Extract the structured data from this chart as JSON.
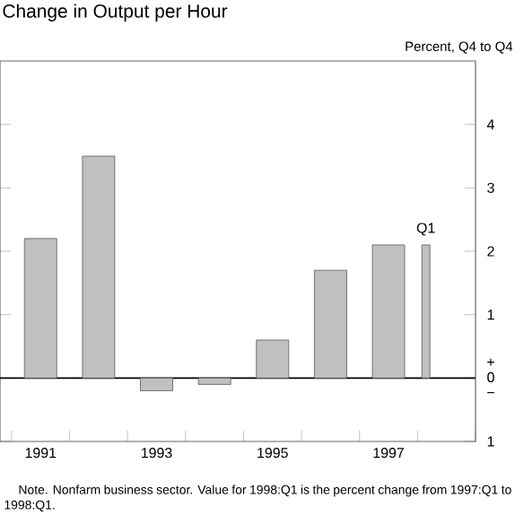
{
  "chart_data": {
    "type": "bar",
    "title": "Change in Output per Hour",
    "ylabel": "Percent, Q4 to Q4",
    "categories": [
      "1991",
      null,
      "1993",
      null,
      "1995",
      null,
      "1997",
      null
    ],
    "values": [
      2.2,
      3.5,
      -0.2,
      -0.1,
      0.6,
      1.7,
      2.1,
      2.1
    ],
    "color": "#c0c0c0",
    "ylim": [
      -1,
      5
    ],
    "yticks": [
      {
        "value": -1,
        "label": "1"
      },
      {
        "value": 0,
        "label": "+ 0 −"
      },
      1,
      2,
      3,
      4
    ],
    "ref_lines": [
      {
        "axis": "y",
        "value": 0
      }
    ],
    "annotations": [
      {
        "text": "Q1",
        "y": 2.1
      },
      "Note. Nonfarm business sector. Value for 1998:Q1 is the percent change from 1997:Q1 to 1998:Q1."
    ]
  }
}
